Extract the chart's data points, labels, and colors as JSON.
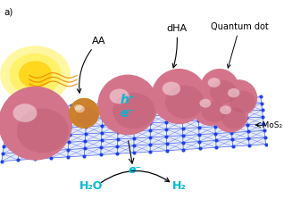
{
  "background_color": "#ffffff",
  "label_AA": "AA",
  "label_dHA": "dHA",
  "label_quantum_dot": "Quantum dot",
  "label_MoS2": "←MoS₂",
  "label_hplus": "h⁺",
  "label_eminus": "e⁻",
  "label_H2O": "H₂O",
  "label_H2": "H₂",
  "sphere_color": "#d4748a",
  "sphere_highlight": "#e8a0b0",
  "sphere_shadow": "#b05068",
  "orange_sphere": "#cc7722",
  "orange_sphere_light": "#e8a040",
  "mos2_blue": "#1a3aee",
  "mos2_white": "#e8eeff",
  "cyan_color": "#00b8d4",
  "sun_yellow": "#ffee44",
  "sun_orange": "#ff9900",
  "wave_orange": "#ee8800"
}
